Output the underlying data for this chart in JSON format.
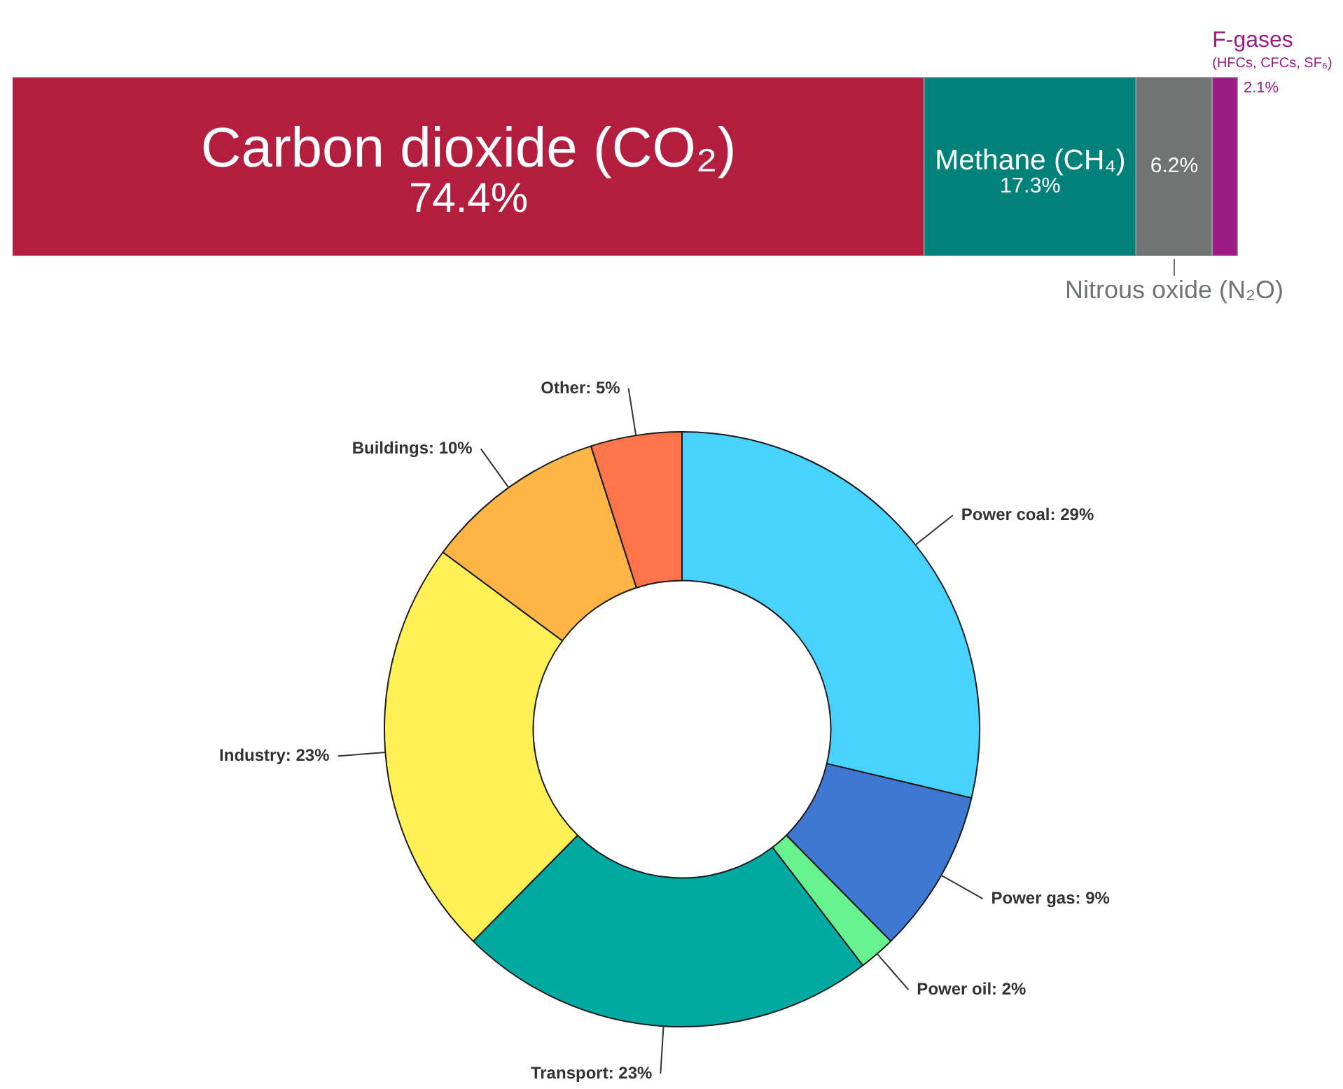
{
  "chart_data": [
    {
      "type": "bar",
      "orientation": "horizontal",
      "stacked": true,
      "categories": [
        null
      ],
      "tick_labels": false,
      "series": [
        {
          "name": "Carbon dioxide (CO₂)",
          "color": "#b41e3e",
          "values": [
            74.4
          ],
          "value_labels": [
            "74.4%"
          ]
        },
        {
          "name": "Methane (CH₄)",
          "color": "#00827a",
          "values": [
            17.3
          ],
          "value_labels": [
            "17.3%"
          ]
        },
        {
          "name": "Nitrous oxide (N₂O)",
          "color": "#6f7372",
          "values": [
            6.2
          ],
          "value_labels": [
            "6.2%"
          ]
        },
        {
          "name": "F-gases (HFCs, CFCs, SF₆)",
          "color": "#9c1a83",
          "values": [
            2.1
          ],
          "value_labels": [
            "2.1%"
          ]
        }
      ]
    },
    {
      "type": "donut",
      "categories": [
        "Power coal",
        "Power gas",
        "Power oil",
        "Transport",
        "Industry",
        "Buildings",
        "Other"
      ],
      "values": [
        29,
        9,
        2,
        23,
        23,
        10,
        5
      ],
      "colors": [
        "#48d2ff",
        "#3e78d2",
        "#68f28f",
        "#00aaa0",
        "#fff155",
        "#ffb446",
        "#ff744a"
      ],
      "value_labels": [
        "29%",
        "9%",
        "2%",
        "23%",
        "23%",
        "10%",
        "5%"
      ]
    }
  ]
}
